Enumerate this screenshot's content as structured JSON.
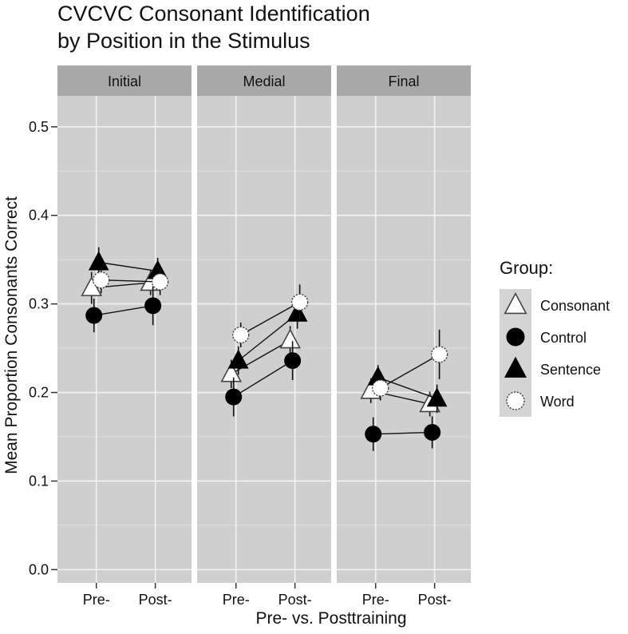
{
  "chart_data": {
    "type": "scatter",
    "title_lines": [
      "CVCVC Consonant Identification",
      "by Position in the Stimulus"
    ],
    "xlabel": "Pre- vs. Posttraining",
    "ylabel": "Mean Proportion Consonants Correct",
    "ylim": [
      -0.015,
      0.535
    ],
    "yticks": [
      0.0,
      0.1,
      0.2,
      0.3,
      0.4,
      0.5
    ],
    "ytick_labels": [
      "0.0",
      "0.1",
      "0.2",
      "0.3",
      "0.4",
      "0.5"
    ],
    "categories": [
      "Pre-",
      "Post-"
    ],
    "facets": [
      "Initial",
      "Medial",
      "Final"
    ],
    "grid": true,
    "legend_position": "right",
    "legend_title": "Group:",
    "series": [
      {
        "name": "Consonant",
        "shape": "triangle-open",
        "values": {
          "Initial": [
            [
              0.318,
              0.3,
              0.336
            ],
            [
              0.324,
              0.31,
              0.338
            ]
          ],
          "Medial": [
            [
              0.221,
              0.205,
              0.237
            ],
            [
              0.259,
              0.243,
              0.275
            ]
          ],
          "Final": [
            [
              0.202,
              0.188,
              0.216
            ],
            [
              0.187,
              0.173,
              0.201
            ]
          ]
        }
      },
      {
        "name": "Control",
        "shape": "circle-filled",
        "values": {
          "Initial": [
            [
              0.287,
              0.268,
              0.306
            ],
            [
              0.298,
              0.276,
              0.32
            ]
          ],
          "Medial": [
            [
              0.195,
              0.173,
              0.217
            ],
            [
              0.236,
              0.214,
              0.258
            ]
          ],
          "Final": [
            [
              0.153,
              0.134,
              0.172
            ],
            [
              0.155,
              0.137,
              0.173
            ]
          ]
        }
      },
      {
        "name": "Sentence",
        "shape": "triangle-filled",
        "values": {
          "Initial": [
            [
              0.347,
              0.33,
              0.364
            ],
            [
              0.337,
              0.322,
              0.352
            ]
          ],
          "Medial": [
            [
              0.236,
              0.22,
              0.252
            ],
            [
              0.289,
              0.272,
              0.306
            ]
          ],
          "Final": [
            [
              0.217,
              0.203,
              0.231
            ],
            [
              0.193,
              0.177,
              0.209
            ]
          ]
        }
      },
      {
        "name": "Word",
        "shape": "circle-open",
        "values": {
          "Initial": [
            [
              0.327,
              0.312,
              0.342
            ],
            [
              0.325,
              0.31,
              0.34
            ]
          ],
          "Medial": [
            [
              0.265,
              0.251,
              0.279
            ],
            [
              0.302,
              0.282,
              0.322
            ]
          ],
          "Final": [
            [
              0.205,
              0.191,
              0.219
            ],
            [
              0.243,
              0.215,
              0.271
            ]
          ]
        }
      }
    ]
  }
}
